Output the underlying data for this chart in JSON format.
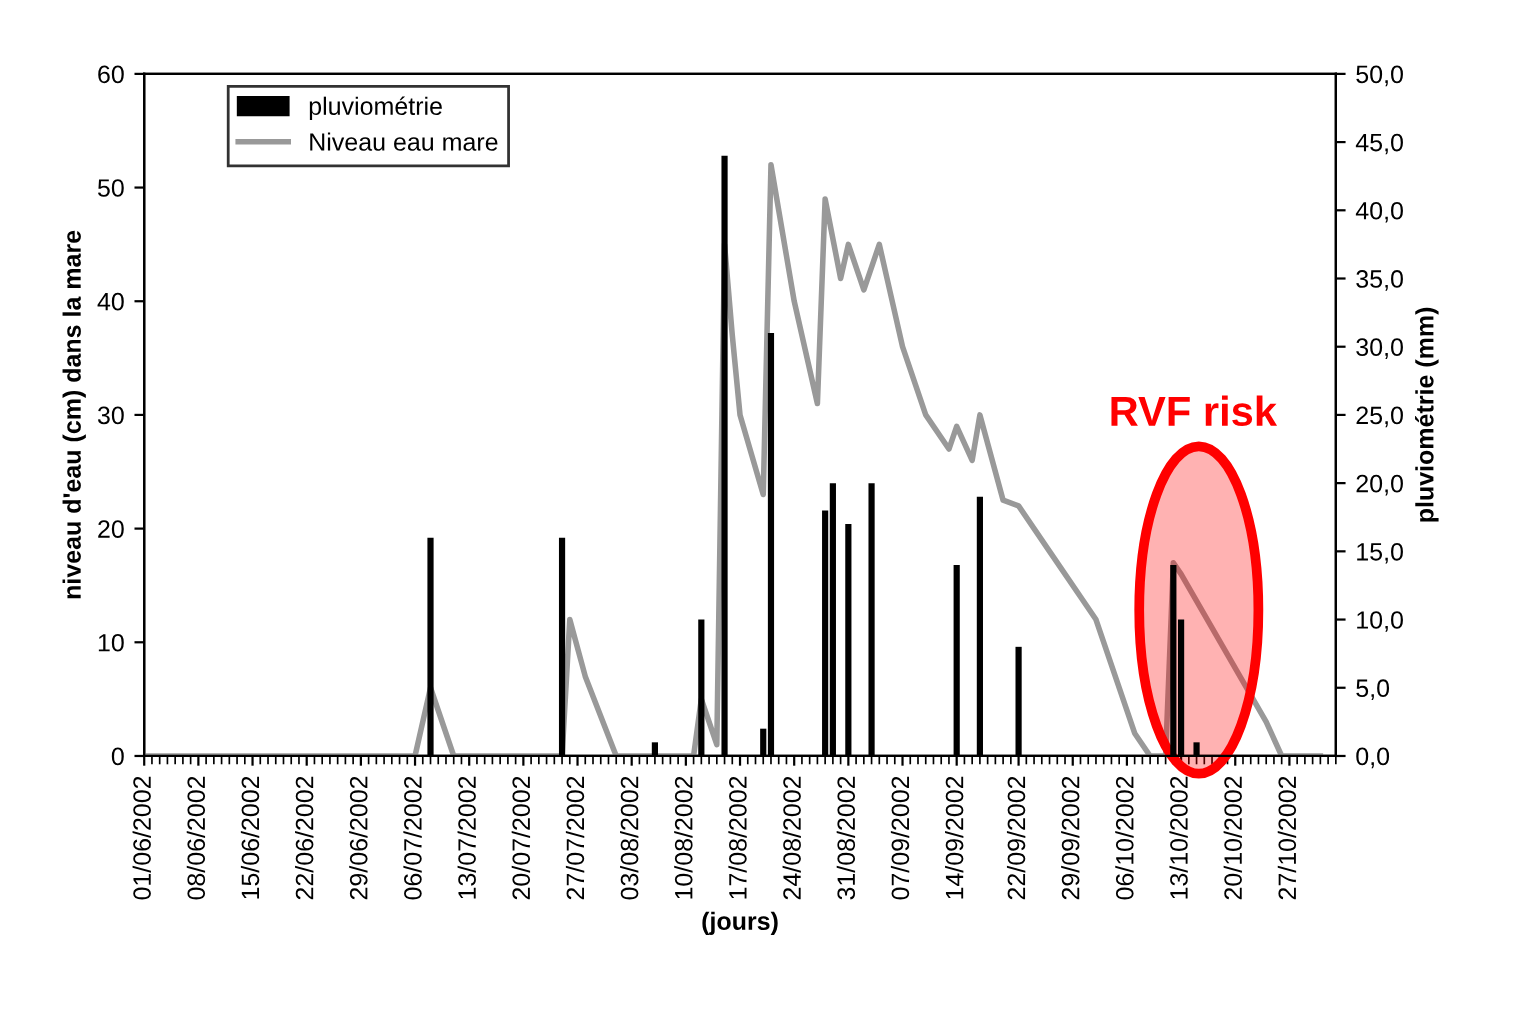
{
  "chart_data": {
    "type": "line",
    "xlabel": "(jours)",
    "ylabel": "niveau d'eau (cm) dans la mare",
    "y2label": "pluviométrie (mm)",
    "xlim": [
      "2002-06-01",
      "2002-11-02"
    ],
    "xticks": [
      {
        "value": "2002-06-01",
        "label": "01/06/2002"
      },
      {
        "value": "2002-06-08",
        "label": "08/06/2002"
      },
      {
        "value": "2002-06-15",
        "label": "15/06/2002"
      },
      {
        "value": "2002-06-22",
        "label": "22/06/2002"
      },
      {
        "value": "2002-06-29",
        "label": "29/06/2002"
      },
      {
        "value": "2002-07-06",
        "label": "06/07/2002"
      },
      {
        "value": "2002-07-13",
        "label": "13/07/2002"
      },
      {
        "value": "2002-07-20",
        "label": "20/07/2002"
      },
      {
        "value": "2002-07-27",
        "label": "27/07/2002"
      },
      {
        "value": "2002-08-03",
        "label": "03/08/2002"
      },
      {
        "value": "2002-08-10",
        "label": "10/08/2002"
      },
      {
        "value": "2002-08-17",
        "label": "17/08/2002"
      },
      {
        "value": "2002-08-24",
        "label": "24/08/2002"
      },
      {
        "value": "2002-08-31",
        "label": "31/08/2002"
      },
      {
        "value": "2002-09-07",
        "label": "07/09/2002"
      },
      {
        "value": "2002-09-14",
        "label": "14/09/2002"
      },
      {
        "value": "2002-09-22",
        "label": "22/09/2002"
      },
      {
        "value": "2002-09-29",
        "label": "29/09/2002"
      },
      {
        "value": "2002-10-06",
        "label": "06/10/2002"
      },
      {
        "value": "2002-10-13",
        "label": "13/10/2002"
      },
      {
        "value": "2002-10-20",
        "label": "20/10/2002"
      },
      {
        "value": "2002-10-27",
        "label": "27/10/2002"
      }
    ],
    "ylim": [
      0,
      60
    ],
    "yticks": [
      0,
      10,
      20,
      30,
      40,
      50,
      60
    ],
    "y2lim": [
      0,
      50
    ],
    "y2ticks": [
      {
        "value": 0,
        "label": "0,0"
      },
      {
        "value": 5,
        "label": "5,0"
      },
      {
        "value": 10,
        "label": "10,0"
      },
      {
        "value": 15,
        "label": "15,0"
      },
      {
        "value": 20,
        "label": "20,0"
      },
      {
        "value": 25,
        "label": "25,0"
      },
      {
        "value": 30,
        "label": "30,0"
      },
      {
        "value": 35,
        "label": "35,0"
      },
      {
        "value": 40,
        "label": "40,0"
      },
      {
        "value": 45,
        "label": "45,0"
      },
      {
        "value": 50,
        "label": "50,0"
      }
    ],
    "legend": "top left",
    "grid": false,
    "series": [
      {
        "name": "pluviométrie",
        "type": "bar",
        "axis": "y2",
        "color": "#000000",
        "x": [
          "2002-07-08",
          "2002-07-25",
          "2002-08-06",
          "2002-08-12",
          "2002-08-15",
          "2002-08-20",
          "2002-08-21",
          "2002-08-28",
          "2002-08-29",
          "2002-08-31",
          "2002-09-03",
          "2002-09-14",
          "2002-09-17",
          "2002-09-22",
          "2002-10-12",
          "2002-10-13",
          "2002-10-15"
        ],
        "values": [
          16,
          16,
          1,
          10,
          44,
          2,
          31,
          18,
          20,
          17,
          20,
          14,
          19,
          8,
          14,
          10,
          1
        ]
      },
      {
        "name": "Niveau eau mare",
        "axis": "y",
        "color": "#999999",
        "x": [
          "2002-06-01",
          "2002-07-06",
          "2002-07-08",
          "2002-07-11",
          "2002-07-25",
          "2002-07-26",
          "2002-07-28",
          "2002-08-01",
          "2002-08-11",
          "2002-08-12",
          "2002-08-14",
          "2002-08-15",
          "2002-08-16",
          "2002-08-17",
          "2002-08-20",
          "2002-08-21",
          "2002-08-22",
          "2002-08-24",
          "2002-08-27",
          "2002-08-28",
          "2002-08-30",
          "2002-08-31",
          "2002-09-02",
          "2002-09-04",
          "2002-09-05",
          "2002-09-07",
          "2002-09-10",
          "2002-09-13",
          "2002-09-14",
          "2002-09-16",
          "2002-09-17",
          "2002-09-20",
          "2002-09-22",
          "2002-09-26",
          "2002-09-30",
          "2002-10-02",
          "2002-10-07",
          "2002-10-09",
          "2002-10-11",
          "2002-10-12",
          "2002-10-13",
          "2002-10-24",
          "2002-10-26",
          "2002-10-31"
        ],
        "values": [
          0,
          0,
          6,
          0,
          0,
          12,
          7,
          0,
          0,
          5,
          1,
          45,
          37,
          30,
          23,
          52,
          48,
          40,
          31,
          49,
          42,
          45,
          41,
          45,
          42,
          36,
          30,
          27,
          29,
          26,
          30,
          22.5,
          22,
          18,
          14,
          12,
          2,
          0,
          0,
          17,
          16,
          3,
          0,
          0
        ]
      }
    ],
    "annotations": [
      "RVF risk"
    ]
  }
}
